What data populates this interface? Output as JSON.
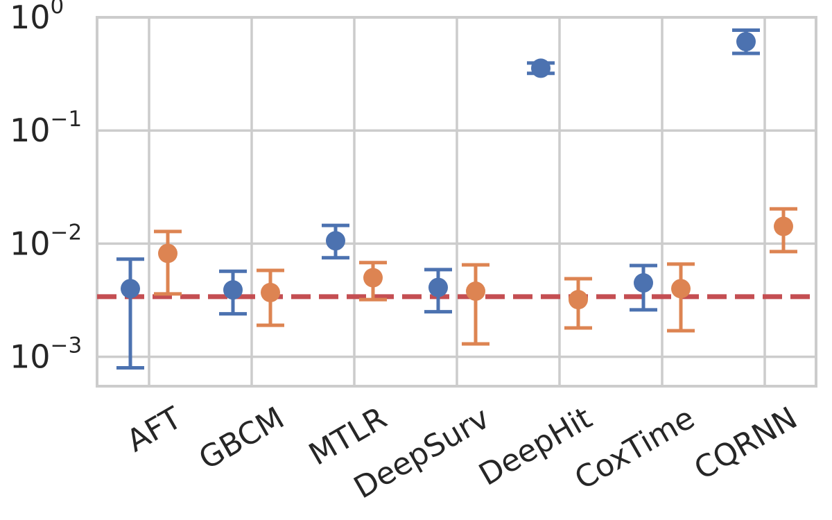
{
  "chart_data": {
    "type": "scatter",
    "title": "",
    "xlabel": "",
    "ylabel": "",
    "yscale": "log",
    "ylim": [
      0.00055,
      1.0
    ],
    "categories": [
      "AFT",
      "GBCM",
      "MTLR",
      "DeepSurv",
      "DeepHit",
      "CoxTime",
      "CQRNN"
    ],
    "yticks": [
      {
        "value": 0.001,
        "base": "10",
        "exp": "−3"
      },
      {
        "value": 0.01,
        "base": "10",
        "exp": "−2"
      },
      {
        "value": 0.1,
        "base": "10",
        "exp": "−1"
      },
      {
        "value": 1.0,
        "base": "10",
        "exp": "0"
      }
    ],
    "series": [
      {
        "color": "#4c72b0",
        "points": [
          {
            "category": "AFT",
            "y": 0.004,
            "lo": 0.0008,
            "hi": 0.0073
          },
          {
            "category": "GBCM",
            "y": 0.0039,
            "lo": 0.0024,
            "hi": 0.0057
          },
          {
            "category": "MTLR",
            "y": 0.0106,
            "lo": 0.0075,
            "hi": 0.0145
          },
          {
            "category": "DeepSurv",
            "y": 0.0041,
            "lo": 0.0025,
            "hi": 0.0059
          },
          {
            "category": "DeepHit",
            "y": 0.355,
            "lo": 0.32,
            "hi": 0.395
          },
          {
            "category": "CoxTime",
            "y": 0.0045,
            "lo": 0.0026,
            "hi": 0.0064
          },
          {
            "category": "CQRNN",
            "y": 0.61,
            "lo": 0.48,
            "hi": 0.77
          }
        ]
      },
      {
        "color": "#dd8452",
        "points": [
          {
            "category": "AFT",
            "y": 0.0082,
            "lo": 0.0036,
            "hi": 0.0128
          },
          {
            "category": "GBCM",
            "y": 0.0037,
            "lo": 0.0019,
            "hi": 0.0058
          },
          {
            "category": "MTLR",
            "y": 0.005,
            "lo": 0.0032,
            "hi": 0.0068
          },
          {
            "category": "DeepSurv",
            "y": 0.0038,
            "lo": 0.0013,
            "hi": 0.0065
          },
          {
            "category": "DeepHit",
            "y": 0.0032,
            "lo": 0.0018,
            "hi": 0.0049
          },
          {
            "category": "CoxTime",
            "y": 0.004,
            "lo": 0.0017,
            "hi": 0.0066
          },
          {
            "category": "CQRNN",
            "y": 0.0142,
            "lo": 0.0085,
            "hi": 0.0203
          }
        ]
      }
    ],
    "reference_line": {
      "y": 0.0034,
      "color": "#c44e52",
      "style": "dashed"
    },
    "grid": true,
    "colors": {
      "grid": "#cccccc",
      "text": "#262626"
    }
  }
}
